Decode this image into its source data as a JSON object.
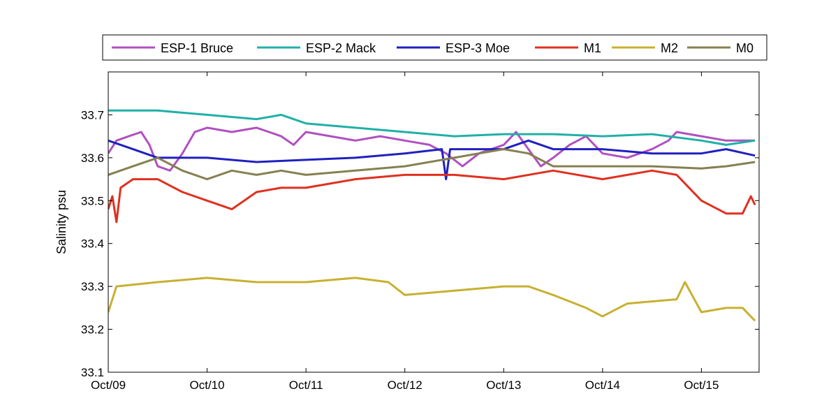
{
  "chart_data": {
    "type": "line",
    "title": "",
    "xlabel": "",
    "ylabel": "Salinity psu",
    "ylim": [
      33.1,
      33.8
    ],
    "xlim": [
      "2013-10-09",
      "2013-10-15 14:00"
    ],
    "y_ticks": [
      "33.1",
      "33.2",
      "33.3",
      "33.4",
      "33.5",
      "33.6",
      "33.7"
    ],
    "x_ticks": [
      "Oct/09",
      "Oct/10",
      "Oct/11",
      "Oct/12",
      "Oct/13",
      "Oct/14",
      "Oct/15"
    ],
    "legend_placement": "top (above plot)",
    "grid": false,
    "series": [
      {
        "name": "ESP-1 Bruce",
        "color": "#b050c0",
        "points": [
          [
            "2013-10-09 00:00",
            33.61
          ],
          [
            "2013-10-09 02:00",
            33.64
          ],
          [
            "2013-10-09 05:00",
            33.65
          ],
          [
            "2013-10-09 08:00",
            33.66
          ],
          [
            "2013-10-09 10:00",
            33.63
          ],
          [
            "2013-10-09 12:00",
            33.58
          ],
          [
            "2013-10-09 15:00",
            33.57
          ],
          [
            "2013-10-09 18:00",
            33.61
          ],
          [
            "2013-10-09 21:00",
            33.66
          ],
          [
            "2013-10-10 00:00",
            33.67
          ],
          [
            "2013-10-10 06:00",
            33.66
          ],
          [
            "2013-10-10 12:00",
            33.67
          ],
          [
            "2013-10-10 18:00",
            33.65
          ],
          [
            "2013-10-10 21:00",
            33.63
          ],
          [
            "2013-10-11 00:00",
            33.66
          ],
          [
            "2013-10-11 06:00",
            33.65
          ],
          [
            "2013-10-11 12:00",
            33.64
          ],
          [
            "2013-10-11 18:00",
            33.65
          ],
          [
            "2013-10-12 00:00",
            33.64
          ],
          [
            "2013-10-12 06:00",
            33.63
          ],
          [
            "2013-10-12 10:00",
            33.61
          ],
          [
            "2013-10-12 14:00",
            33.58
          ],
          [
            "2013-10-12 18:00",
            33.61
          ],
          [
            "2013-10-13 00:00",
            33.63
          ],
          [
            "2013-10-13 03:00",
            33.66
          ],
          [
            "2013-10-13 06:00",
            33.62
          ],
          [
            "2013-10-13 09:00",
            33.58
          ],
          [
            "2013-10-13 12:00",
            33.6
          ],
          [
            "2013-10-13 16:00",
            33.63
          ],
          [
            "2013-10-13 20:00",
            33.65
          ],
          [
            "2013-10-14 00:00",
            33.61
          ],
          [
            "2013-10-14 06:00",
            33.6
          ],
          [
            "2013-10-14 12:00",
            33.62
          ],
          [
            "2013-10-14 16:00",
            33.64
          ],
          [
            "2013-10-14 18:00",
            33.66
          ],
          [
            "2013-10-15 00:00",
            33.65
          ],
          [
            "2013-10-15 06:00",
            33.64
          ],
          [
            "2013-10-15 13:00",
            33.64
          ]
        ]
      },
      {
        "name": "ESP-2 Mack",
        "color": "#20b0a8",
        "points": [
          [
            "2013-10-09 00:00",
            33.71
          ],
          [
            "2013-10-09 12:00",
            33.71
          ],
          [
            "2013-10-10 00:00",
            33.7
          ],
          [
            "2013-10-10 12:00",
            33.69
          ],
          [
            "2013-10-10 18:00",
            33.7
          ],
          [
            "2013-10-11 00:00",
            33.68
          ],
          [
            "2013-10-11 12:00",
            33.67
          ],
          [
            "2013-10-12 00:00",
            33.66
          ],
          [
            "2013-10-12 12:00",
            33.65
          ],
          [
            "2013-10-13 00:00",
            33.655
          ],
          [
            "2013-10-13 12:00",
            33.655
          ],
          [
            "2013-10-14 00:00",
            33.65
          ],
          [
            "2013-10-14 12:00",
            33.655
          ],
          [
            "2013-10-15 00:00",
            33.64
          ],
          [
            "2013-10-15 06:00",
            33.63
          ],
          [
            "2013-10-15 13:00",
            33.64
          ]
        ]
      },
      {
        "name": "ESP-3 Moe",
        "color": "#2020c0",
        "points": [
          [
            "2013-10-09 00:00",
            33.64
          ],
          [
            "2013-10-09 06:00",
            33.62
          ],
          [
            "2013-10-09 12:00",
            33.6
          ],
          [
            "2013-10-10 00:00",
            33.6
          ],
          [
            "2013-10-10 12:00",
            33.59
          ],
          [
            "2013-10-11 00:00",
            33.595
          ],
          [
            "2013-10-11 12:00",
            33.6
          ],
          [
            "2013-10-12 00:00",
            33.61
          ],
          [
            "2013-10-12 09:00",
            33.62
          ],
          [
            "2013-10-12 10:00",
            33.55
          ],
          [
            "2013-10-12 11:00",
            33.62
          ],
          [
            "2013-10-12 18:00",
            33.62
          ],
          [
            "2013-10-13 00:00",
            33.62
          ],
          [
            "2013-10-13 06:00",
            33.64
          ],
          [
            "2013-10-13 12:00",
            33.62
          ],
          [
            "2013-10-14 00:00",
            33.62
          ],
          [
            "2013-10-14 12:00",
            33.61
          ],
          [
            "2013-10-15 00:00",
            33.61
          ],
          [
            "2013-10-15 06:00",
            33.62
          ],
          [
            "2013-10-15 13:00",
            33.605
          ]
        ]
      },
      {
        "name": "M1",
        "color": "#e03020",
        "points": [
          [
            "2013-10-09 00:00",
            33.48
          ],
          [
            "2013-10-09 01:00",
            33.51
          ],
          [
            "2013-10-09 02:00",
            33.45
          ],
          [
            "2013-10-09 03:00",
            33.53
          ],
          [
            "2013-10-09 06:00",
            33.55
          ],
          [
            "2013-10-09 12:00",
            33.55
          ],
          [
            "2013-10-09 18:00",
            33.52
          ],
          [
            "2013-10-10 00:00",
            33.5
          ],
          [
            "2013-10-10 06:00",
            33.48
          ],
          [
            "2013-10-10 12:00",
            33.52
          ],
          [
            "2013-10-10 18:00",
            33.53
          ],
          [
            "2013-10-11 00:00",
            33.53
          ],
          [
            "2013-10-11 12:00",
            33.55
          ],
          [
            "2013-10-12 00:00",
            33.56
          ],
          [
            "2013-10-12 12:00",
            33.56
          ],
          [
            "2013-10-13 00:00",
            33.55
          ],
          [
            "2013-10-13 12:00",
            33.57
          ],
          [
            "2013-10-14 00:00",
            33.55
          ],
          [
            "2013-10-14 12:00",
            33.57
          ],
          [
            "2013-10-14 18:00",
            33.56
          ],
          [
            "2013-10-15 00:00",
            33.5
          ],
          [
            "2013-10-15 06:00",
            33.47
          ],
          [
            "2013-10-15 10:00",
            33.47
          ],
          [
            "2013-10-15 12:00",
            33.51
          ],
          [
            "2013-10-15 13:00",
            33.49
          ]
        ]
      },
      {
        "name": "M2",
        "color": "#c8b030",
        "points": [
          [
            "2013-10-09 00:00",
            33.24
          ],
          [
            "2013-10-09 02:00",
            33.3
          ],
          [
            "2013-10-09 12:00",
            33.31
          ],
          [
            "2013-10-10 00:00",
            33.32
          ],
          [
            "2013-10-10 12:00",
            33.31
          ],
          [
            "2013-10-11 00:00",
            33.31
          ],
          [
            "2013-10-11 12:00",
            33.32
          ],
          [
            "2013-10-11 20:00",
            33.31
          ],
          [
            "2013-10-12 00:00",
            33.28
          ],
          [
            "2013-10-12 12:00",
            33.29
          ],
          [
            "2013-10-13 00:00",
            33.3
          ],
          [
            "2013-10-13 06:00",
            33.3
          ],
          [
            "2013-10-13 12:00",
            33.28
          ],
          [
            "2013-10-13 20:00",
            33.25
          ],
          [
            "2013-10-14 00:00",
            33.23
          ],
          [
            "2013-10-14 06:00",
            33.26
          ],
          [
            "2013-10-14 12:00",
            33.265
          ],
          [
            "2013-10-14 18:00",
            33.27
          ],
          [
            "2013-10-14 20:00",
            33.31
          ],
          [
            "2013-10-15 00:00",
            33.24
          ],
          [
            "2013-10-15 06:00",
            33.25
          ],
          [
            "2013-10-15 10:00",
            33.25
          ],
          [
            "2013-10-15 13:00",
            33.22
          ]
        ]
      },
      {
        "name": "M0",
        "color": "#858050",
        "points": [
          [
            "2013-10-09 00:00",
            33.56
          ],
          [
            "2013-10-09 06:00",
            33.58
          ],
          [
            "2013-10-09 12:00",
            33.6
          ],
          [
            "2013-10-09 18:00",
            33.57
          ],
          [
            "2013-10-10 00:00",
            33.55
          ],
          [
            "2013-10-10 06:00",
            33.57
          ],
          [
            "2013-10-10 12:00",
            33.56
          ],
          [
            "2013-10-10 18:00",
            33.57
          ],
          [
            "2013-10-11 00:00",
            33.56
          ],
          [
            "2013-10-11 12:00",
            33.57
          ],
          [
            "2013-10-12 00:00",
            33.58
          ],
          [
            "2013-10-12 12:00",
            33.6
          ],
          [
            "2013-10-12 18:00",
            33.61
          ],
          [
            "2013-10-13 00:00",
            33.62
          ],
          [
            "2013-10-13 06:00",
            33.61
          ],
          [
            "2013-10-13 12:00",
            33.58
          ],
          [
            "2013-10-14 00:00",
            33.58
          ],
          [
            "2013-10-14 12:00",
            33.58
          ],
          [
            "2013-10-15 00:00",
            33.575
          ],
          [
            "2013-10-15 06:00",
            33.58
          ],
          [
            "2013-10-15 13:00",
            33.59
          ]
        ]
      }
    ]
  }
}
